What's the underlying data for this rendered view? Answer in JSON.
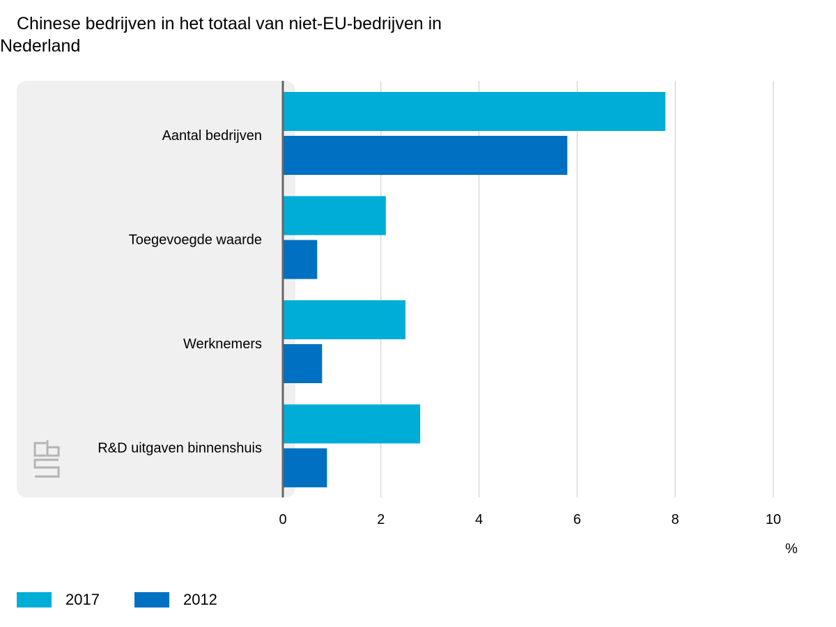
{
  "title": "Chinese bedrijven in het totaal van niet-EU-bedrijven in Nederland",
  "chart_data": {
    "type": "bar",
    "orientation": "horizontal",
    "title": "Chinese bedrijven in het totaal van niet-EU-bedrijven in Nederland",
    "xlabel": "%",
    "ylabel": "",
    "xlim": [
      0,
      10
    ],
    "xticks": [
      "0",
      "2",
      "4",
      "6",
      "8",
      "10"
    ],
    "grid": true,
    "legend_position": "bottom-left",
    "categories": [
      "Aantal bedrijven",
      "Toegevoegde waarde",
      "Werknemers",
      "R&D uitgaven binnenshuis"
    ],
    "series": [
      {
        "name": "2017",
        "color": "#00ADD6",
        "values": [
          7.8,
          2.1,
          2.5,
          2.8
        ]
      },
      {
        "name": "2012",
        "color": "#0070C2",
        "values": [
          5.8,
          0.7,
          0.8,
          0.9
        ]
      }
    ]
  },
  "logo": {
    "text": "cbs",
    "icon": "cbs-logo-icon"
  }
}
